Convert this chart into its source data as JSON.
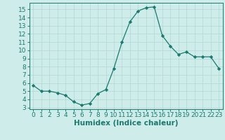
{
  "x": [
    0,
    1,
    2,
    3,
    4,
    5,
    6,
    7,
    8,
    9,
    10,
    11,
    12,
    13,
    14,
    15,
    16,
    17,
    18,
    19,
    20,
    21,
    22,
    23
  ],
  "y": [
    5.7,
    5.0,
    5.0,
    4.8,
    4.5,
    3.7,
    3.3,
    3.5,
    4.7,
    5.2,
    7.8,
    11.0,
    13.5,
    14.8,
    15.2,
    15.3,
    11.8,
    10.5,
    9.5,
    9.8,
    9.2,
    9.2,
    9.2,
    7.8
  ],
  "xlabel": "Humidex (Indice chaleur)",
  "ylim": [
    2.8,
    15.8
  ],
  "xlim": [
    -0.5,
    23.5
  ],
  "yticks": [
    3,
    4,
    5,
    6,
    7,
    8,
    9,
    10,
    11,
    12,
    13,
    14,
    15
  ],
  "xticks": [
    0,
    1,
    2,
    3,
    4,
    5,
    6,
    7,
    8,
    9,
    10,
    11,
    12,
    13,
    14,
    15,
    16,
    17,
    18,
    19,
    20,
    21,
    22,
    23
  ],
  "line_color": "#1a7a6e",
  "marker": "D",
  "marker_size": 2.2,
  "bg_color": "#ceecea",
  "grid_color": "#b0d8d4",
  "tick_fontsize": 6.5,
  "xlabel_fontsize": 7.5
}
